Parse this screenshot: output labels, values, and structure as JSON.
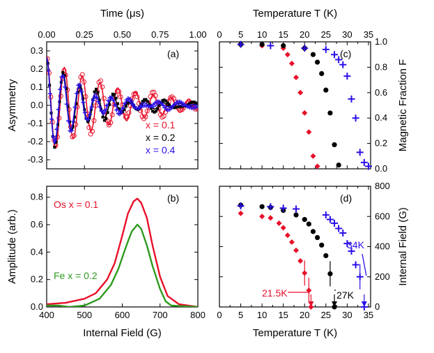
{
  "colors": {
    "red": "#e8102a",
    "black": "#000000",
    "blue": "#2a10e8",
    "green": "#2e9a1e"
  },
  "chart_data": [
    {
      "id": "a",
      "type": "line",
      "panel_label": "(a)",
      "xlabel": "Time (μs)",
      "ylabel": "Asymmetry",
      "xlim": [
        0,
        1.0
      ],
      "ylim": [
        -0.35,
        0.35
      ],
      "xticks": [
        "0.00",
        "0.25",
        "0.50",
        "0.75",
        "1.00"
      ],
      "yticks": [
        "-0.3",
        "-0.2",
        "-0.1",
        "0.0",
        "0.1",
        "0.2",
        "0.3"
      ],
      "series": [
        {
          "name": "x = 0.1",
          "color": "#e8102a",
          "amp": 0.27,
          "freq": 8.5,
          "decay": 2.2
        },
        {
          "name": "x = 0.2",
          "color": "#000000",
          "amp": 0.26,
          "freq": 9.1,
          "decay": 3.6
        },
        {
          "name": "x = 0.4",
          "color": "#2a10e8",
          "amp": 0.265,
          "freq": 9.3,
          "decay": 4.4
        }
      ]
    },
    {
      "id": "b",
      "type": "line",
      "panel_label": "(b)",
      "xlabel": "Internal Field (G)",
      "ylabel": "Amplitude (arb.)",
      "xlim": [
        400,
        800
      ],
      "ylim": [
        0,
        0.88
      ],
      "xticks": [
        "400",
        "500",
        "600",
        "700",
        "800"
      ],
      "yticks": [
        "0.0",
        "0.2",
        "0.4",
        "0.6",
        "0.8"
      ],
      "series": [
        {
          "name": "Os x = 0.1",
          "color": "#e8102a",
          "x": [
            400,
            450,
            500,
            530,
            560,
            580,
            600,
            615,
            630,
            640,
            650,
            665,
            680,
            700,
            720,
            750,
            800
          ],
          "y": [
            0.02,
            0.03,
            0.06,
            0.1,
            0.2,
            0.32,
            0.52,
            0.68,
            0.77,
            0.79,
            0.76,
            0.65,
            0.45,
            0.22,
            0.08,
            0.02,
            0.0
          ]
        },
        {
          "name": "Fe x = 0.2",
          "color": "#2e9a1e",
          "x": [
            400,
            430,
            460,
            500,
            540,
            570,
            590,
            610,
            625,
            640,
            650,
            665,
            680,
            700,
            715,
            730,
            800
          ],
          "y": [
            0.01,
            0.01,
            0.0,
            0.01,
            0.06,
            0.16,
            0.28,
            0.44,
            0.55,
            0.6,
            0.57,
            0.45,
            0.3,
            0.13,
            0.04,
            0.01,
            0.0
          ]
        }
      ]
    },
    {
      "id": "c",
      "type": "scatter",
      "panel_label": "(c)",
      "xlabel": "Temperature T (K)",
      "ylabel": "Magnetic Fraction F",
      "xlim": [
        0,
        35.5
      ],
      "ylim": [
        0,
        1.0
      ],
      "xticks": [
        "0",
        "5",
        "10",
        "15",
        "20",
        "25",
        "30",
        "35"
      ],
      "yticks": [
        "0.0",
        "0.2",
        "0.4",
        "0.6",
        "0.8",
        "1.0"
      ],
      "series": [
        {
          "name": "x = 0.1",
          "color": "#e8102a",
          "marker": "diamond",
          "x": [
            5,
            10,
            15,
            16,
            17,
            18,
            19,
            20,
            21,
            22,
            23
          ],
          "y": [
            0.98,
            0.97,
            0.95,
            0.9,
            0.83,
            0.72,
            0.6,
            0.44,
            0.29,
            0.1,
            0.02
          ]
        },
        {
          "name": "x = 0.2",
          "color": "#000000",
          "marker": "circle",
          "x": [
            5,
            10,
            15,
            20,
            22,
            23,
            24,
            25,
            26,
            27,
            28
          ],
          "y": [
            0.98,
            0.98,
            0.97,
            0.95,
            0.9,
            0.84,
            0.75,
            0.62,
            0.44,
            0.19,
            0.03
          ]
        },
        {
          "name": "x = 0.4",
          "color": "#2a10e8",
          "marker": "plus",
          "x": [
            5,
            12,
            20,
            25,
            27,
            28,
            29,
            30,
            31,
            32,
            33,
            34,
            35
          ],
          "y": [
            0.98,
            0.97,
            0.95,
            0.94,
            0.9,
            0.86,
            0.82,
            0.73,
            0.55,
            0.4,
            0.13,
            0.05,
            0.02
          ]
        }
      ]
    },
    {
      "id": "d",
      "type": "scatter",
      "panel_label": "(d)",
      "xlabel": "Temperature T (K)",
      "ylabel": "Internal Field (G)",
      "xlim": [
        0,
        35.5
      ],
      "ylim": [
        0,
        800
      ],
      "xticks": [
        "0",
        "5",
        "10",
        "15",
        "20",
        "25",
        "30",
        "35"
      ],
      "yticks": [
        "0",
        "200",
        "400",
        "600",
        "800"
      ],
      "annotations": [
        {
          "text": "21.5K",
          "color": "#e8102a",
          "T": 21.5
        },
        {
          "text": "27K",
          "color": "#000000",
          "T": 27
        },
        {
          "text": "34K",
          "color": "#2a10e8",
          "T": 34
        }
      ],
      "series": [
        {
          "name": "x = 0.1",
          "color": "#e8102a",
          "marker": "diamond",
          "x": [
            5,
            10,
            12,
            14,
            15,
            16,
            17,
            18,
            19,
            20,
            21,
            21.5
          ],
          "y": [
            620,
            600,
            590,
            555,
            525,
            475,
            430,
            375,
            305,
            225,
            110,
            0
          ]
        },
        {
          "name": "x = 0.2",
          "color": "#000000",
          "marker": "circle",
          "x": [
            5,
            10,
            12,
            15,
            18,
            20,
            21,
            22,
            23,
            24,
            25,
            26,
            27
          ],
          "y": [
            675,
            665,
            660,
            640,
            610,
            580,
            550,
            500,
            460,
            410,
            340,
            220,
            0
          ]
        },
        {
          "name": "x = 0.4",
          "color": "#2a10e8",
          "marker": "plus",
          "x": [
            5,
            12,
            15,
            18,
            25,
            26,
            27,
            28,
            29,
            30,
            31,
            32,
            33,
            34
          ],
          "y": [
            670,
            665,
            655,
            650,
            610,
            580,
            555,
            520,
            490,
            420,
            370,
            280,
            200,
            0
          ]
        }
      ]
    }
  ]
}
